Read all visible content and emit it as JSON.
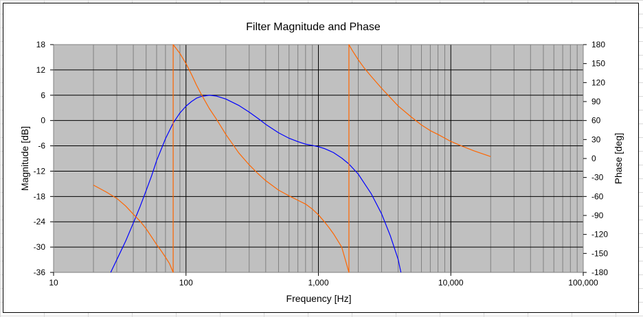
{
  "chart_data": {
    "type": "line",
    "title": "Filter Magnitude and Phase",
    "xlabel": "Frequency [Hz]",
    "ylabel": "Magnitude [dB]",
    "y2label": "Phase [deg]",
    "x_scale": "log",
    "xlim": [
      10,
      100000
    ],
    "ylim": [
      -36,
      18
    ],
    "y2lim": [
      -180,
      180
    ],
    "x_ticks": [
      "10",
      "100",
      "1,000",
      "10,000",
      "100,000"
    ],
    "y_ticks": [
      "18",
      "12",
      "6",
      "0",
      "-6",
      "-12",
      "-18",
      "-24",
      "-30",
      "-36"
    ],
    "y2_ticks": [
      "180",
      "150",
      "120",
      "90",
      "60",
      "30",
      "0",
      "-30",
      "-60",
      "-90",
      "-120",
      "-150",
      "-180"
    ],
    "grid": true,
    "legend": "none",
    "plot_background": "#c0c0c0",
    "series": [
      {
        "axis": "left",
        "color": "#0000ff",
        "x": [
          27,
          30,
          35,
          40,
          45,
          50,
          55,
          60,
          65,
          70,
          75,
          80,
          90,
          100,
          110,
          120,
          130,
          150,
          170,
          200,
          250,
          300,
          350,
          400,
          500,
          600,
          700,
          800,
          900,
          1000,
          1100,
          1200,
          1300,
          1500,
          1700,
          2000,
          2500,
          3000,
          3500,
          4000,
          4200
        ],
        "y": [
          -36.0,
          -33.0,
          -28.6,
          -24.3,
          -20.4,
          -16.6,
          -13.1,
          -9.5,
          -6.8,
          -4.3,
          -2.4,
          -0.6,
          1.8,
          3.4,
          4.5,
          5.3,
          5.7,
          6.0,
          5.8,
          5.1,
          3.6,
          2.0,
          0.5,
          -0.9,
          -2.9,
          -4.2,
          -5.0,
          -5.6,
          -5.9,
          -6.2,
          -6.6,
          -7.1,
          -7.6,
          -8.9,
          -10.3,
          -12.7,
          -17.3,
          -22.1,
          -27.4,
          -32.9,
          -36.0
        ]
      },
      {
        "axis": "right",
        "color": "#ff6600",
        "x": [
          20,
          25,
          30,
          35,
          40,
          45,
          50,
          55,
          60,
          65,
          70,
          75,
          80,
          80,
          90,
          100,
          110,
          120,
          130,
          150,
          170,
          200,
          250,
          300,
          350,
          400,
          500,
          600,
          700,
          800,
          900,
          1000,
          1100,
          1200,
          1300,
          1500,
          1700,
          1700,
          1800,
          2000,
          2200,
          2500,
          3000,
          3500,
          4000,
          5000,
          6000,
          7000,
          8000,
          10000,
          12000,
          15000,
          20000
        ],
        "y": [
          -42,
          -53,
          -63,
          -75,
          -88,
          -99,
          -111,
          -124,
          -136,
          -146,
          -156,
          -166,
          -180,
          180,
          166,
          150,
          133,
          116,
          102,
          79,
          62,
          38,
          9,
          -10,
          -24,
          -35,
          -50,
          -59,
          -66,
          -72,
          -80,
          -89,
          -99,
          -109,
          -119,
          -140,
          -180,
          180,
          171,
          156,
          144,
          130,
          111,
          96,
          83,
          66,
          53,
          44,
          38,
          27,
          20,
          12,
          3
        ]
      }
    ]
  }
}
